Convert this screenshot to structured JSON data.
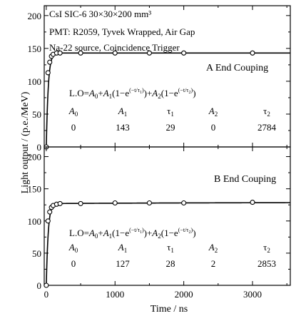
{
  "chart_data": {
    "type": "scatter",
    "shared_xaxis": {
      "label": "Time / ns",
      "xlim": [
        -30,
        3550
      ],
      "ticks": [
        0,
        1000,
        2000,
        3000
      ],
      "tick_labels": [
        "0",
        "1000",
        "2000",
        "3000"
      ]
    },
    "ylabel": "Light output / (p.e./MeV)",
    "header_lines": [
      "CsI SIC-6 30×30×200 mm³",
      "PMT: R2059, Tyvek Wrapped, Air Gap",
      "Na-22 source, Coincidence Trigger"
    ],
    "formula_parts": {
      "lo": "L.O=",
      "a0": "A",
      "a0_sub": "0",
      "plus1": "+",
      "a1": "A",
      "a1_sub": "1",
      "mid1": "(1−e",
      "exp1": "(−t/τ",
      "exp1_sub": "1",
      "exp_close": ")",
      "close1": ")+",
      "a2": "A",
      "a2_sub": "2",
      "mid2": "(1−e",
      "exp2": "(−t/τ",
      "exp2_sub": "2",
      "close2": ")"
    },
    "param_headers": [
      {
        "base": "A",
        "sub": "0",
        "italic": true
      },
      {
        "base": "A",
        "sub": "1",
        "italic": true
      },
      {
        "base": "τ",
        "sub": "1",
        "italic": false
      },
      {
        "base": "A",
        "sub": "2",
        "italic": true
      },
      {
        "base": "τ",
        "sub": "2",
        "italic": false
      }
    ],
    "panels": [
      {
        "label": "A End Couping",
        "ylim": [
          0,
          215
        ],
        "yticks": [
          0,
          50,
          100,
          150,
          200
        ],
        "ytick_labels": [
          "0",
          "50",
          "100",
          "150",
          "200"
        ],
        "params": {
          "A0": "0",
          "A1": "143",
          "tau1": "29",
          "A2": "0",
          "tau2": "2784"
        },
        "fit": {
          "A0": 0,
          "A1": 143,
          "tau1": 29,
          "A2": 0,
          "tau2": 2784
        },
        "points": {
          "x": [
            0,
            25,
            50,
            75,
            100,
            150,
            200,
            500,
            1000,
            1500,
            2000,
            3000
          ],
          "y": [
            0,
            113,
            129,
            138,
            141,
            143,
            143,
            143,
            143,
            143,
            143,
            143
          ]
        }
      },
      {
        "label": "B End Couping",
        "ylim": [
          0,
          215
        ],
        "yticks": [
          0,
          50,
          100,
          150,
          200
        ],
        "ytick_labels": [
          "0",
          "50",
          "100",
          "150",
          "200"
        ],
        "params": {
          "A0": "0",
          "A1": "127",
          "tau1": "28",
          "A2": "2",
          "tau2": "2853"
        },
        "fit": {
          "A0": 0,
          "A1": 127,
          "tau1": 28,
          "A2": 2,
          "tau2": 2853
        },
        "points": {
          "x": [
            0,
            25,
            50,
            75,
            100,
            150,
            200,
            500,
            1000,
            1500,
            2000,
            3000
          ],
          "y": [
            0,
            100,
            114,
            121,
            124,
            126,
            127,
            127,
            128,
            128,
            128,
            129
          ]
        }
      }
    ]
  }
}
